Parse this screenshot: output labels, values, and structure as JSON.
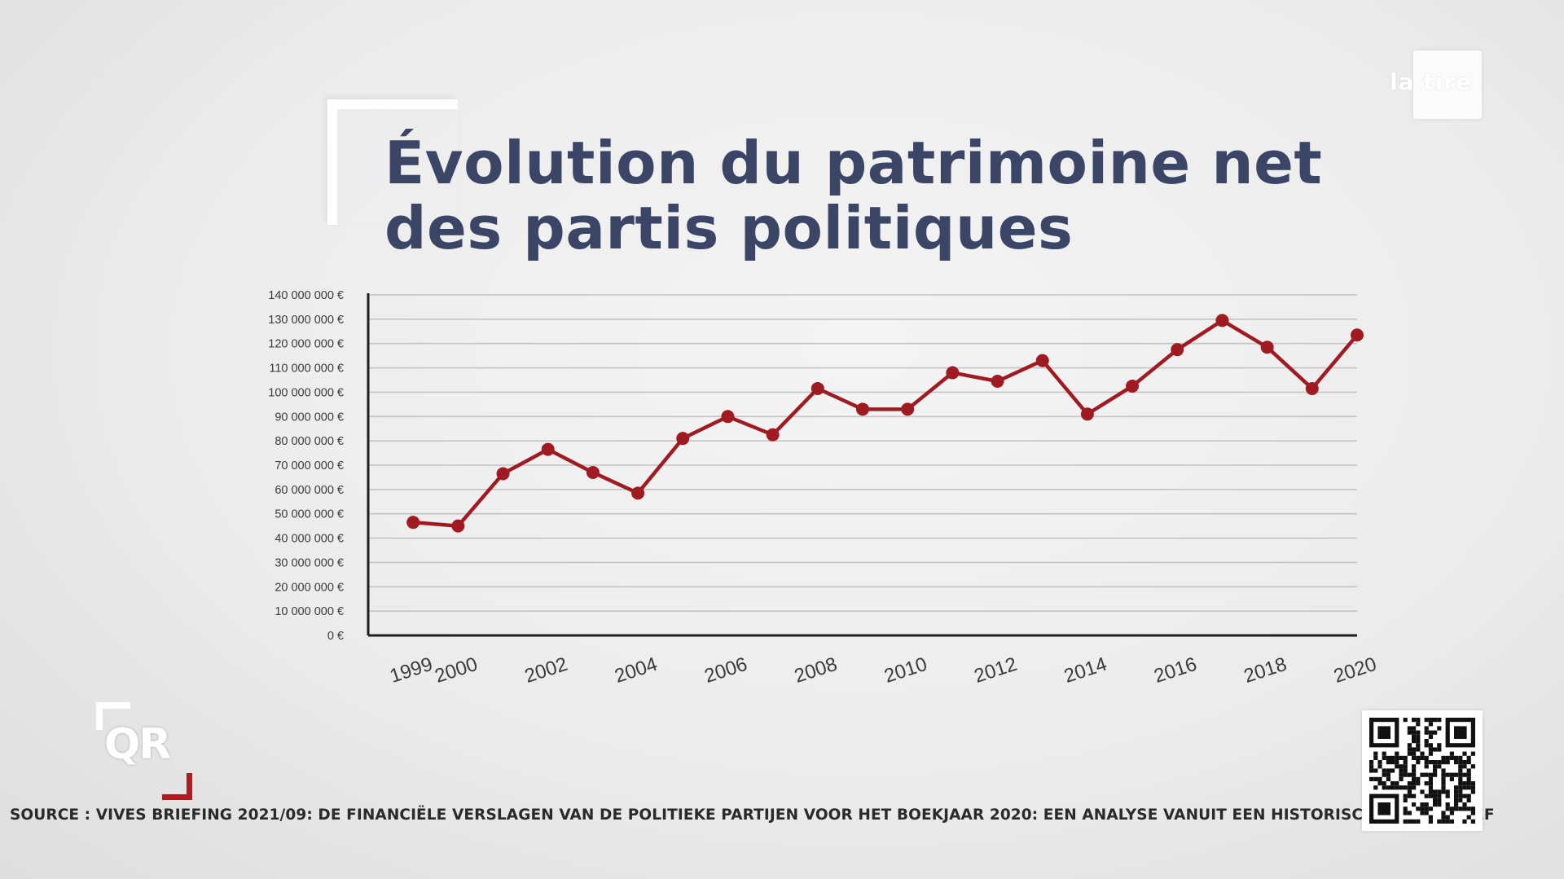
{
  "header": {
    "title_line1": "Évolution du patrimoine net",
    "title_line2": "des partis politiques",
    "logo": "latitre-logo"
  },
  "badge": {
    "text": "QR",
    "accent_color": "#b01c22"
  },
  "footer": {
    "source": "SOURCE : VIVES BRIEFING 2021/09: DE FINANCIËLE VERSLAGEN VAN DE POLITIEKE PARTIJEN VOOR HET BOEKJAAR 2020: EEN ANALYSE VANUIT EEN HISTORISCH PERSPECTIEF",
    "qr_icon": "qr-code-icon"
  },
  "chart_data": {
    "type": "line",
    "title": "Évolution du patrimoine net des partis politiques",
    "xlabel": "",
    "ylabel": "",
    "x": [
      1999,
      2000,
      2001,
      2002,
      2003,
      2004,
      2005,
      2006,
      2007,
      2008,
      2009,
      2010,
      2011,
      2012,
      2013,
      2014,
      2015,
      2016,
      2017,
      2018,
      2019,
      2020
    ],
    "series": [
      {
        "name": "",
        "color": "#a01a22",
        "values": [
          46500000,
          45000000,
          66500000,
          76500000,
          67000000,
          58500000,
          81000000,
          90000000,
          82500000,
          101500000,
          93000000,
          93000000,
          108000000,
          104500000,
          113000000,
          91000000,
          102500000,
          117500000,
          129500000,
          118500000,
          101500000,
          123500000
        ]
      }
    ],
    "x_tick_labels": [
      "1999",
      "2000",
      "2002",
      "2004",
      "2006",
      "2008",
      "2010",
      "2012",
      "2014",
      "2016",
      "2018",
      "2020"
    ],
    "y_tick_labels": [
      "0 €",
      "10 000 000 €",
      "20 000 000 €",
      "30 000 000 €",
      "40 000 000 €",
      "50 000 000 €",
      "60 000 000 €",
      "70 000 000 €",
      "80 000 000 €",
      "90 000 000 €",
      "100 000 000 €",
      "110 000 000 €",
      "120 000 000 €",
      "130 000 000 €",
      "140 000 000 €"
    ],
    "ylim": [
      0,
      140000000
    ],
    "xlim": [
      1998,
      2020
    ],
    "grid": true,
    "legend": "none"
  }
}
